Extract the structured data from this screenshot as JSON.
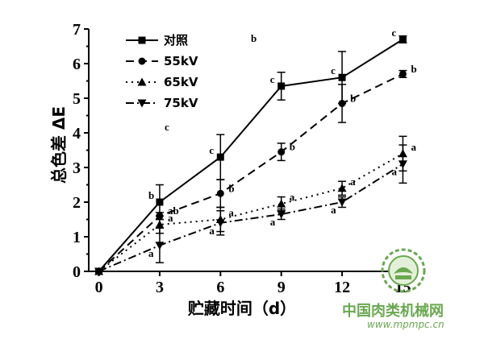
{
  "chart_data": {
    "type": "line",
    "xlabel": "贮藏时间（d）",
    "ylabel": "总色差 ΔE",
    "x": [
      0,
      3,
      6,
      9,
      12,
      15
    ],
    "x_tick_labels": [
      "0",
      "3",
      "6",
      "9",
      "12",
      "15"
    ],
    "y_tick_labels": [
      "0",
      "1",
      "2",
      "3",
      "4",
      "5",
      "6",
      "7"
    ],
    "xlim": [
      -0.5,
      15.5
    ],
    "ylim": [
      0,
      7
    ],
    "grid": false,
    "legend_position": "top-left",
    "series": [
      {
        "name": "对照",
        "values": [
          0,
          2.0,
          3.3,
          5.35,
          5.6,
          6.7
        ],
        "errors": [
          0,
          0.5,
          0.65,
          0.4,
          0.75,
          0.1
        ],
        "letters": [
          "",
          "b",
          "c",
          "c",
          "c",
          "c"
        ],
        "marker": "square",
        "dash": "solid"
      },
      {
        "name": "55kV",
        "values": [
          0,
          1.6,
          2.25,
          3.45,
          4.85,
          5.7
        ],
        "errors": [
          0,
          0.1,
          0.4,
          0.25,
          0.55,
          0.1
        ],
        "letters": [
          "",
          "ab",
          "b",
          "b",
          "b",
          "b"
        ],
        "marker": "circle",
        "dash": "dash"
      },
      {
        "name": "65kV",
        "values": [
          0,
          1.35,
          1.5,
          1.95,
          2.4,
          3.4
        ],
        "errors": [
          0,
          0.25,
          0.35,
          0.2,
          0.2,
          0.5
        ],
        "letters": [
          "",
          "a",
          "a",
          "a",
          "a",
          "a"
        ],
        "marker": "triangle-up",
        "dash": "dot"
      },
      {
        "name": "75kV",
        "values": [
          0,
          0.75,
          1.4,
          1.65,
          2.0,
          3.1
        ],
        "errors": [
          0,
          0.5,
          0.35,
          0.15,
          0.15,
          0.55
        ],
        "letters": [
          "",
          "a",
          "a",
          "a",
          "a",
          "a"
        ],
        "marker": "triangle-down",
        "dash": "dashdot"
      }
    ],
    "stray_annotations": [
      "b",
      "c"
    ]
  },
  "watermark": {
    "site_name": "中国肉类机械网",
    "url": "www.mpmpc.cn",
    "logo_color": "#6aa84f"
  }
}
